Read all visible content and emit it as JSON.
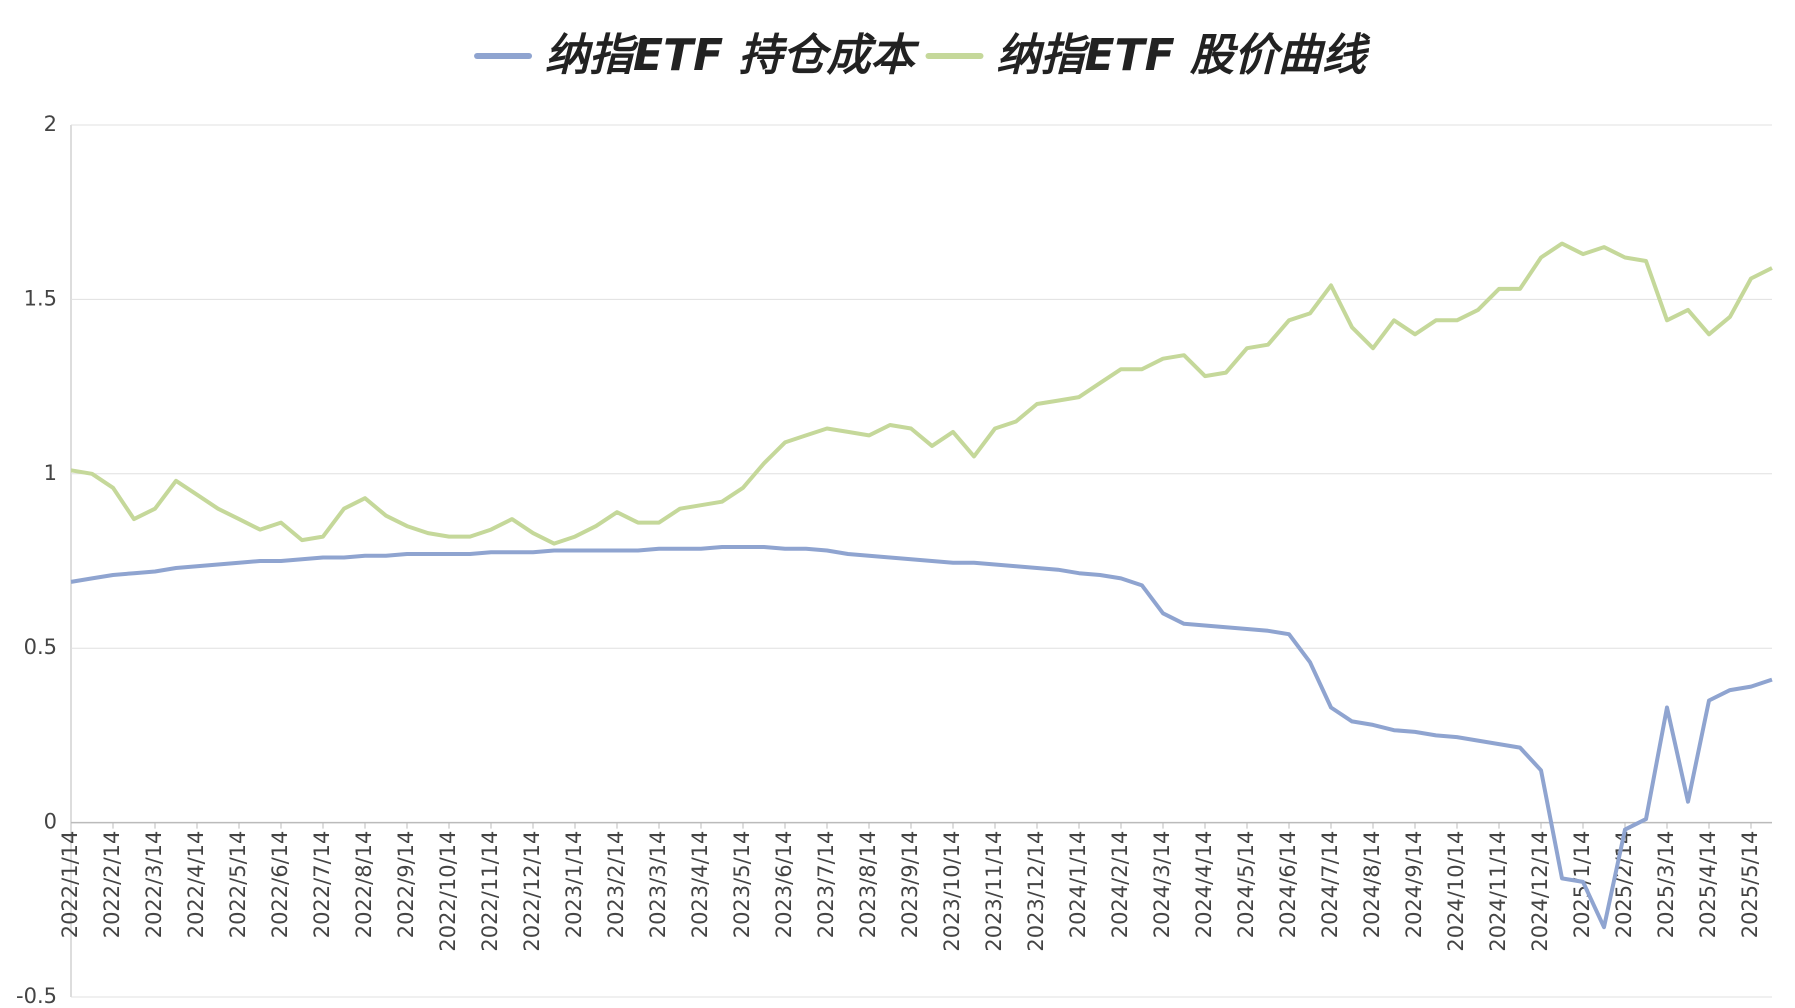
{
  "chart_data": {
    "type": "line",
    "categories": [
      "2022/1/14",
      null,
      "2022/2/14",
      null,
      "2022/3/14",
      null,
      "2022/4/14",
      null,
      "2022/5/14",
      null,
      "2022/6/14",
      null,
      "2022/7/14",
      null,
      "2022/8/14",
      null,
      "2022/9/14",
      null,
      "2022/10/14",
      null,
      "2022/11/14",
      null,
      "2022/12/14",
      null,
      "2023/1/14",
      null,
      "2023/2/14",
      null,
      "2023/3/14",
      null,
      "2023/4/14",
      null,
      "2023/5/14",
      null,
      "2023/6/14",
      null,
      "2023/7/14",
      null,
      "2023/8/14",
      null,
      "2023/9/14",
      null,
      "2023/10/14",
      null,
      "2023/11/14",
      null,
      "2023/12/14",
      null,
      "2024/1/14",
      null,
      "2024/2/14",
      null,
      "2024/3/14",
      null,
      "2024/4/14",
      null,
      "2024/5/14",
      null,
      "2024/6/14",
      null,
      "2024/7/14",
      null,
      "2024/8/14",
      null,
      "2024/9/14",
      null,
      "2024/10/14",
      null,
      "2024/11/14",
      null,
      "2024/12/14",
      null,
      "2025/1/14",
      null,
      "2025/2/14",
      null,
      "2025/3/14",
      null,
      "2025/4/14",
      null,
      "2025/5/14",
      null
    ],
    "series": [
      {
        "name": "纳指ETF 持仓成本",
        "color": "#8fa4d0",
        "values": [
          0.69,
          0.7,
          0.71,
          0.715,
          0.72,
          0.73,
          0.735,
          0.74,
          0.745,
          0.75,
          0.75,
          0.755,
          0.76,
          0.76,
          0.765,
          0.765,
          0.77,
          0.77,
          0.77,
          0.77,
          0.775,
          0.775,
          0.775,
          0.78,
          0.78,
          0.78,
          0.78,
          0.78,
          0.785,
          0.785,
          0.785,
          0.79,
          0.79,
          0.79,
          0.785,
          0.785,
          0.78,
          0.77,
          0.765,
          0.76,
          0.755,
          0.75,
          0.745,
          0.745,
          0.74,
          0.735,
          0.73,
          0.725,
          0.715,
          0.71,
          0.7,
          0.68,
          0.6,
          0.57,
          0.565,
          0.56,
          0.555,
          0.55,
          0.54,
          0.46,
          0.33,
          0.29,
          0.28,
          0.265,
          0.26,
          0.25,
          0.245,
          0.235,
          0.225,
          0.215,
          0.15,
          -0.16,
          -0.17,
          -0.3,
          -0.02,
          0.01,
          0.33,
          0.06,
          0.35,
          0.38,
          0.39,
          0.41
        ]
      },
      {
        "name": "纳指ETF 股价曲线",
        "color": "#c5d89a",
        "values": [
          1.01,
          1.0,
          0.96,
          0.87,
          0.9,
          0.98,
          0.94,
          0.9,
          0.87,
          0.84,
          0.86,
          0.81,
          0.82,
          0.9,
          0.93,
          0.88,
          0.85,
          0.83,
          0.82,
          0.82,
          0.84,
          0.87,
          0.83,
          0.8,
          0.82,
          0.85,
          0.89,
          0.86,
          0.86,
          0.9,
          0.91,
          0.92,
          0.96,
          1.03,
          1.09,
          1.11,
          1.13,
          1.12,
          1.11,
          1.14,
          1.13,
          1.08,
          1.12,
          1.05,
          1.13,
          1.15,
          1.2,
          1.21,
          1.22,
          1.26,
          1.3,
          1.3,
          1.33,
          1.34,
          1.28,
          1.29,
          1.36,
          1.37,
          1.44,
          1.46,
          1.54,
          1.42,
          1.36,
          1.44,
          1.4,
          1.44,
          1.44,
          1.47,
          1.53,
          1.53,
          1.62,
          1.66,
          1.63,
          1.65,
          1.62,
          1.61,
          1.44,
          1.47,
          1.4,
          1.45,
          1.56,
          1.59
        ]
      }
    ],
    "ylim": [
      -0.5,
      2
    ],
    "yticks": [
      -0.5,
      0,
      0.5,
      1,
      1.5,
      2
    ],
    "grid": true,
    "legend": "top"
  }
}
